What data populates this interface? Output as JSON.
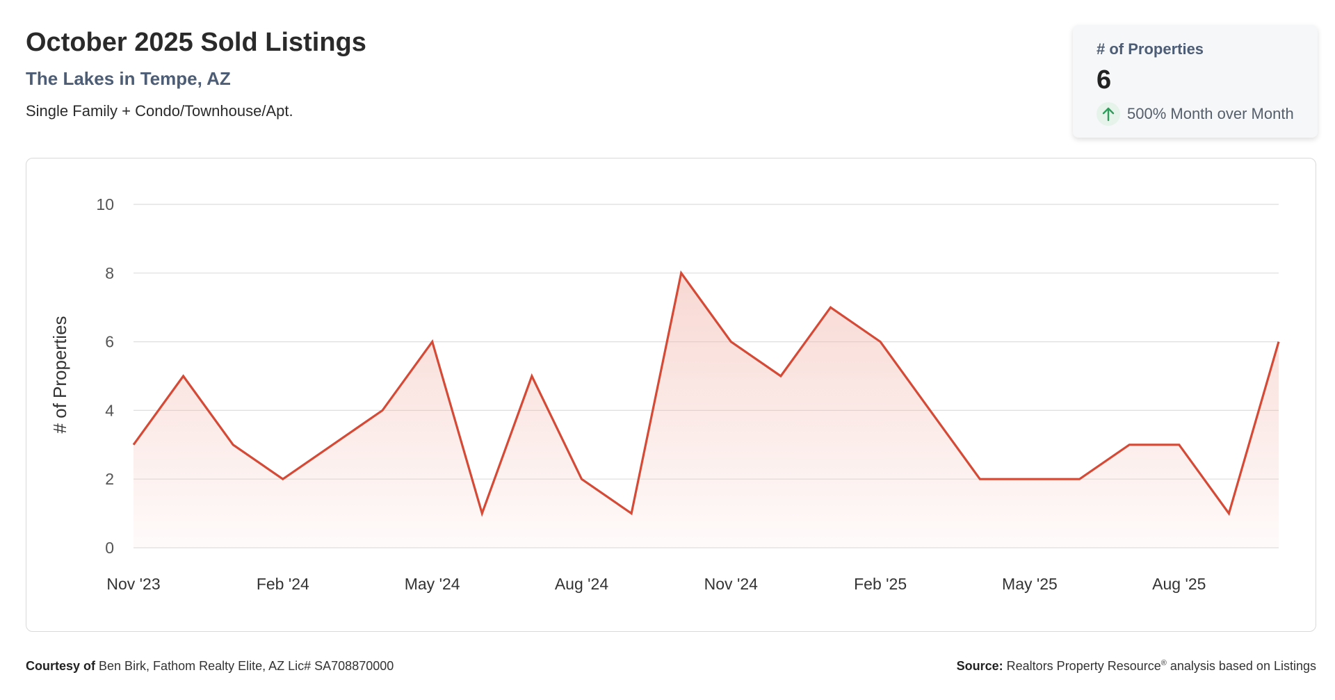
{
  "header": {
    "title": "October 2025 Sold Listings",
    "subtitle": "The Lakes in Tempe, AZ",
    "property_types": "Single Family + Condo/Townhouse/Apt."
  },
  "stat_card": {
    "label": "# of Properties",
    "value": "6",
    "change_text": "500% Month over Month",
    "icon": "arrow-up-icon",
    "icon_color": "#2e9d5a"
  },
  "footer": {
    "courtesy_label": "Courtesy of",
    "courtesy_text": "Ben Birk, Fathom Realty Elite, AZ Lic# SA708870000",
    "source_label": "Source:",
    "source_text_before": "Realtors Property Resource",
    "source_mark": "®",
    "source_text_after": " analysis based on Listings"
  },
  "chart_data": {
    "type": "area",
    "title": "",
    "xlabel": "",
    "ylabel": "# of Properties",
    "ylim": [
      0,
      10
    ],
    "yticks": [
      0,
      2,
      4,
      6,
      8,
      10
    ],
    "grid": true,
    "line_color": "#d44a36",
    "fill_color": "#f4c7c0",
    "x": [
      "Nov '23",
      "Dec '23",
      "Jan '24",
      "Feb '24",
      "Mar '24",
      "Apr '24",
      "May '24",
      "Jun '24",
      "Jul '24",
      "Aug '24",
      "Sep '24",
      "Oct '24",
      "Nov '24",
      "Dec '24",
      "Jan '25",
      "Feb '25",
      "Mar '25",
      "Apr '25",
      "May '25",
      "Jun '25",
      "Jul '25",
      "Aug '25",
      "Sep '25",
      "Oct '25"
    ],
    "xtick_labels": [
      "Nov '23",
      "Feb '24",
      "May '24",
      "Aug '24",
      "Nov '24",
      "Feb '25",
      "May '25",
      "Aug '25"
    ],
    "series": [
      {
        "values": [
          3,
          5,
          3,
          2,
          3,
          4,
          6,
          1,
          5,
          2,
          1,
          8,
          6,
          5,
          7,
          6,
          4,
          2,
          2,
          2,
          3,
          3,
          1,
          6
        ]
      }
    ]
  }
}
